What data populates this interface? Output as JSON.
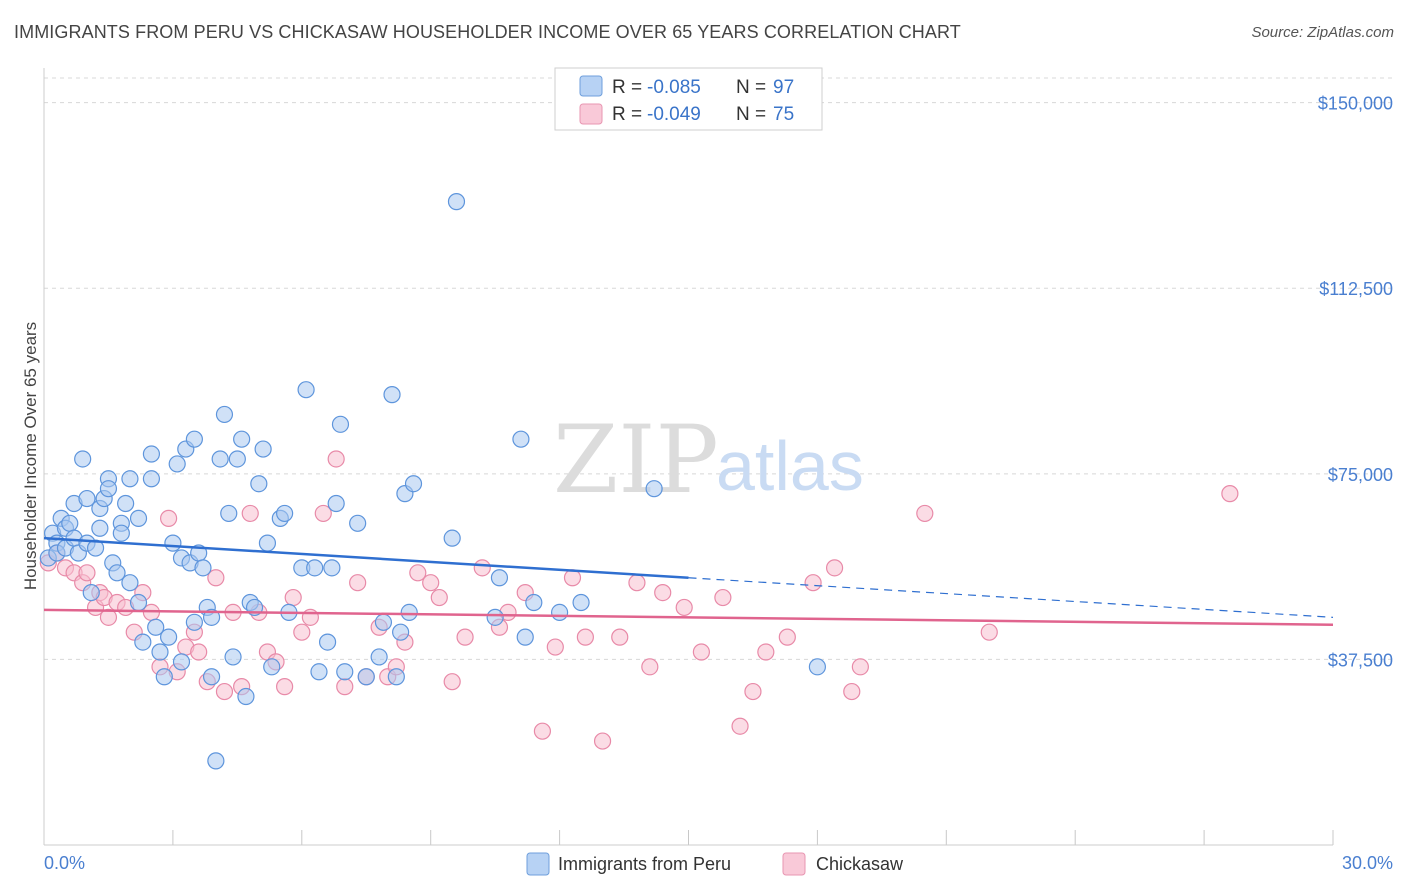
{
  "header": {
    "title": "IMMIGRANTS FROM PERU VS CHICKASAW HOUSEHOLDER INCOME OVER 65 YEARS CORRELATION CHART",
    "source": "Source: ZipAtlas.com"
  },
  "watermark": {
    "zip": "ZIP",
    "atlas": "atlas"
  },
  "colors": {
    "blue_fill": "#a9c8f0",
    "blue_stroke": "#5e95dc",
    "blue_line": "#2f6fd0",
    "pink_fill": "#f7bfd0",
    "pink_stroke": "#e88aa8",
    "pink_line": "#e0648e",
    "grid": "#d8d8d8",
    "axis_text": "#4a7fd0"
  },
  "legend": {
    "rows": [
      {
        "r_label": "R = ",
        "r_value": "-0.085",
        "n_label": "N = ",
        "n_value": "97"
      },
      {
        "r_label": "R = ",
        "r_value": "-0.049",
        "n_label": "N = ",
        "n_value": "75"
      }
    ]
  },
  "chart_data": {
    "type": "scatter",
    "title": "IMMIGRANTS FROM PERU VS CHICKASAW HOUSEHOLDER INCOME OVER 65 YEARS CORRELATION CHART",
    "xlabel": "",
    "ylabel": "Householder Income Over 65 years",
    "xlim": [
      0,
      30
    ],
    "ylim": [
      0,
      157000
    ],
    "x_tick_labels": [
      "0.0%",
      "30.0%"
    ],
    "y_ticks": [
      {
        "value": 37500,
        "label": "$37,500"
      },
      {
        "value": 75000,
        "label": "$75,000"
      },
      {
        "value": 112500,
        "label": "$112,500"
      },
      {
        "value": 150000,
        "label": "$150,000"
      }
    ],
    "grid": true,
    "legend_position": "bottom",
    "series": [
      {
        "name": "Immigrants from Peru",
        "color": "#a9c8f0",
        "trend": {
          "x0": 0,
          "y0": 62000,
          "x1": 15,
          "y1": 54000,
          "dashed_to_x": 30,
          "dashed_to_y": 46000
        },
        "points": [
          [
            0.1,
            58000
          ],
          [
            0.2,
            63000
          ],
          [
            0.3,
            61000
          ],
          [
            0.3,
            59000
          ],
          [
            0.4,
            66000
          ],
          [
            0.5,
            64000
          ],
          [
            0.5,
            60000
          ],
          [
            0.6,
            65000
          ],
          [
            0.7,
            62000
          ],
          [
            0.7,
            69000
          ],
          [
            0.8,
            59000
          ],
          [
            0.9,
            78000
          ],
          [
            1.0,
            61000
          ],
          [
            1.0,
            70000
          ],
          [
            1.1,
            51000
          ],
          [
            1.2,
            60000
          ],
          [
            1.3,
            68000
          ],
          [
            1.3,
            64000
          ],
          [
            1.4,
            70000
          ],
          [
            1.5,
            74000
          ],
          [
            1.5,
            72000
          ],
          [
            1.6,
            57000
          ],
          [
            1.7,
            55000
          ],
          [
            1.8,
            65000
          ],
          [
            1.8,
            63000
          ],
          [
            1.9,
            69000
          ],
          [
            2.0,
            53000
          ],
          [
            2.0,
            74000
          ],
          [
            2.2,
            66000
          ],
          [
            2.2,
            49000
          ],
          [
            2.3,
            41000
          ],
          [
            2.5,
            74000
          ],
          [
            2.5,
            79000
          ],
          [
            2.6,
            44000
          ],
          [
            2.7,
            39000
          ],
          [
            2.8,
            34000
          ],
          [
            3.0,
            61000
          ],
          [
            3.1,
            77000
          ],
          [
            3.2,
            37000
          ],
          [
            3.2,
            58000
          ],
          [
            3.3,
            80000
          ],
          [
            3.4,
            57000
          ],
          [
            3.5,
            82000
          ],
          [
            3.5,
            45000
          ],
          [
            3.6,
            59000
          ],
          [
            3.7,
            56000
          ],
          [
            3.8,
            48000
          ],
          [
            3.9,
            46000
          ],
          [
            3.9,
            34000
          ],
          [
            4.0,
            17000
          ],
          [
            4.1,
            78000
          ],
          [
            4.2,
            87000
          ],
          [
            4.3,
            67000
          ],
          [
            4.4,
            38000
          ],
          [
            4.5,
            78000
          ],
          [
            4.6,
            82000
          ],
          [
            4.7,
            30000
          ],
          [
            4.8,
            49000
          ],
          [
            4.9,
            48000
          ],
          [
            5.0,
            73000
          ],
          [
            5.1,
            80000
          ],
          [
            5.3,
            36000
          ],
          [
            5.5,
            66000
          ],
          [
            5.6,
            67000
          ],
          [
            5.7,
            47000
          ],
          [
            6.0,
            56000
          ],
          [
            6.1,
            92000
          ],
          [
            6.3,
            56000
          ],
          [
            6.4,
            35000
          ],
          [
            6.6,
            41000
          ],
          [
            6.7,
            56000
          ],
          [
            6.8,
            69000
          ],
          [
            6.9,
            85000
          ],
          [
            7.0,
            35000
          ],
          [
            7.3,
            65000
          ],
          [
            7.5,
            34000
          ],
          [
            7.8,
            38000
          ],
          [
            7.9,
            45000
          ],
          [
            8.1,
            91000
          ],
          [
            8.2,
            34000
          ],
          [
            8.3,
            43000
          ],
          [
            8.4,
            71000
          ],
          [
            8.5,
            47000
          ],
          [
            8.6,
            73000
          ],
          [
            9.5,
            62000
          ],
          [
            9.6,
            130000
          ],
          [
            10.5,
            46000
          ],
          [
            10.6,
            54000
          ],
          [
            11.1,
            82000
          ],
          [
            11.2,
            42000
          ],
          [
            11.4,
            49000
          ],
          [
            12.0,
            47000
          ],
          [
            12.5,
            49000
          ],
          [
            14.2,
            72000
          ],
          [
            18.0,
            36000
          ],
          [
            5.2,
            61000
          ],
          [
            2.9,
            42000
          ]
        ]
      },
      {
        "name": "Chickasaw",
        "color": "#f7bfd0",
        "trend": {
          "x0": 0,
          "y0": 47500,
          "x1": 30,
          "y1": 44500
        },
        "points": [
          [
            0.1,
            57000
          ],
          [
            0.3,
            59000
          ],
          [
            0.5,
            56000
          ],
          [
            0.7,
            55000
          ],
          [
            0.9,
            53000
          ],
          [
            1.0,
            55000
          ],
          [
            1.2,
            48000
          ],
          [
            1.3,
            51000
          ],
          [
            1.4,
            50000
          ],
          [
            1.5,
            46000
          ],
          [
            1.7,
            49000
          ],
          [
            1.9,
            48000
          ],
          [
            2.1,
            43000
          ],
          [
            2.3,
            51000
          ],
          [
            2.5,
            47000
          ],
          [
            2.7,
            36000
          ],
          [
            2.9,
            66000
          ],
          [
            3.1,
            35000
          ],
          [
            3.3,
            40000
          ],
          [
            3.5,
            43000
          ],
          [
            3.6,
            39000
          ],
          [
            3.8,
            33000
          ],
          [
            4.0,
            54000
          ],
          [
            4.2,
            31000
          ],
          [
            4.4,
            47000
          ],
          [
            4.6,
            32000
          ],
          [
            4.8,
            67000
          ],
          [
            5.0,
            47000
          ],
          [
            5.2,
            39000
          ],
          [
            5.4,
            37000
          ],
          [
            5.6,
            32000
          ],
          [
            5.8,
            50000
          ],
          [
            6.0,
            43000
          ],
          [
            6.2,
            46000
          ],
          [
            6.5,
            67000
          ],
          [
            6.8,
            78000
          ],
          [
            7.0,
            32000
          ],
          [
            7.3,
            53000
          ],
          [
            7.5,
            34000
          ],
          [
            7.8,
            44000
          ],
          [
            8.0,
            34000
          ],
          [
            8.2,
            36000
          ],
          [
            8.4,
            41000
          ],
          [
            8.7,
            55000
          ],
          [
            9.0,
            53000
          ],
          [
            9.2,
            50000
          ],
          [
            9.5,
            33000
          ],
          [
            9.8,
            42000
          ],
          [
            10.2,
            56000
          ],
          [
            10.6,
            44000
          ],
          [
            10.8,
            47000
          ],
          [
            11.2,
            51000
          ],
          [
            11.6,
            23000
          ],
          [
            11.9,
            40000
          ],
          [
            12.3,
            54000
          ],
          [
            12.6,
            42000
          ],
          [
            13.0,
            21000
          ],
          [
            13.4,
            42000
          ],
          [
            13.8,
            53000
          ],
          [
            14.1,
            36000
          ],
          [
            14.4,
            51000
          ],
          [
            14.9,
            48000
          ],
          [
            15.3,
            39000
          ],
          [
            15.8,
            50000
          ],
          [
            16.2,
            24000
          ],
          [
            16.5,
            31000
          ],
          [
            16.8,
            39000
          ],
          [
            17.3,
            42000
          ],
          [
            17.9,
            53000
          ],
          [
            18.4,
            56000
          ],
          [
            18.8,
            31000
          ],
          [
            19.0,
            36000
          ],
          [
            20.5,
            67000
          ],
          [
            27.6,
            71000
          ],
          [
            22.0,
            43000
          ]
        ]
      }
    ]
  },
  "bottom_legend": {
    "items": [
      {
        "label": "Immigrants from Peru"
      },
      {
        "label": "Chickasaw"
      }
    ]
  }
}
